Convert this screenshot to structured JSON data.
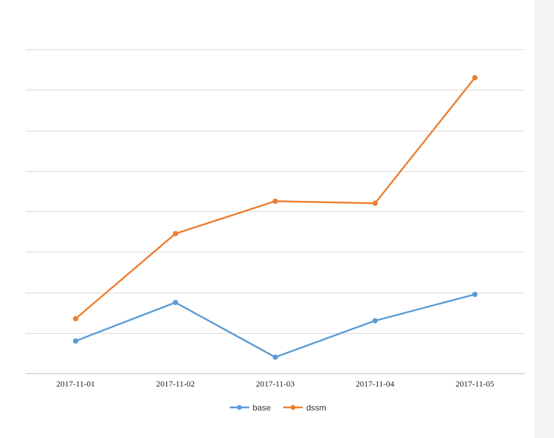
{
  "chart_data": {
    "type": "line",
    "categories": [
      "2017-11-01",
      "2017-11-02",
      "2017-11-03",
      "2017-11-04",
      "2017-11-05"
    ],
    "series": [
      {
        "name": "base",
        "color": "#5b9bd5",
        "values": [
          0.8,
          1.75,
          0.4,
          1.3,
          1.95
        ]
      },
      {
        "name": "dssm",
        "color": "#ed7d31",
        "values": [
          1.35,
          3.45,
          4.25,
          4.2,
          7.3
        ]
      }
    ],
    "ylim": [
      0,
      8
    ],
    "yticks_visible": false,
    "grid": true,
    "legend_position": "bottom-center",
    "title": "",
    "xlabel": "",
    "ylabel": ""
  }
}
